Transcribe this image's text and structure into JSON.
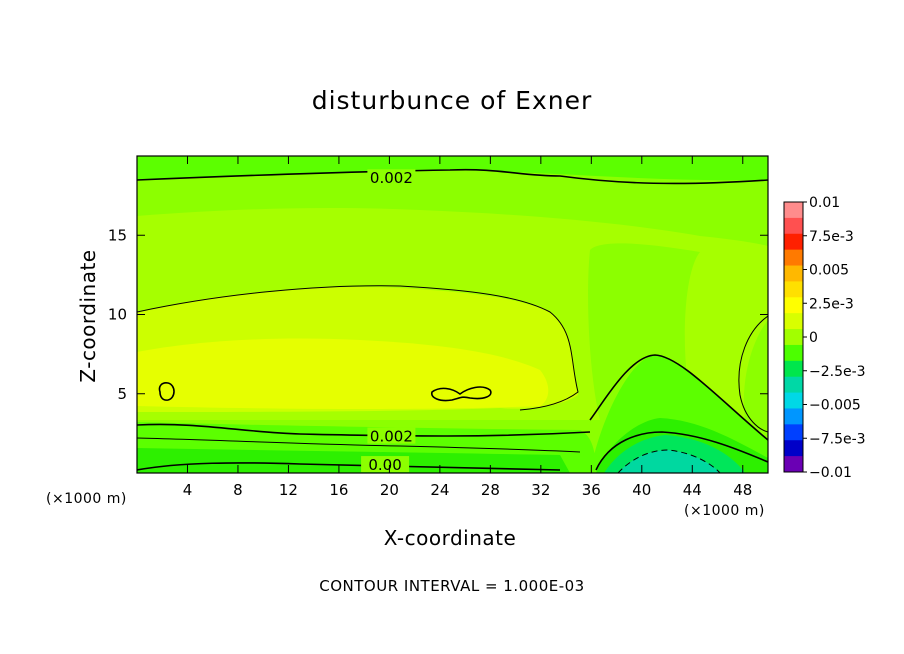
{
  "chart_data": {
    "type": "contour",
    "title": "disturbunce of Exner",
    "xlabel": "X-coordinate",
    "ylabel": "Z-coordinate",
    "x_unit": "(×1000 m)",
    "y_unit": "(×1000 m)",
    "xlim": [
      0,
      50
    ],
    "ylim": [
      0,
      20
    ],
    "x_ticks": [
      4,
      8,
      12,
      16,
      20,
      24,
      28,
      32,
      36,
      40,
      44,
      48
    ],
    "y_ticks": [
      5,
      10,
      15
    ],
    "contour_interval_text": "CONTOUR INTERVAL = 1.000E-03",
    "contour_labels": [
      {
        "x": 20,
        "y": 18.6,
        "text": "0.002"
      },
      {
        "x": 20,
        "y": 2.3,
        "text": "0.002"
      },
      {
        "x": 19.5,
        "y": 0.5,
        "text": "0.00"
      }
    ],
    "colorbar": {
      "labels": [
        "0.01",
        "7.5e-3",
        "0.005",
        "2.5e-3",
        "0",
        "−2.5e-3",
        "−0.005",
        "−7.5e-3",
        "−0.01"
      ],
      "colors": [
        "#ff8c8c",
        "#ff5050",
        "#ff2000",
        "#ff7a00",
        "#ffb800",
        "#ffe000",
        "#ffff00",
        "#d8ff00",
        "#a2ff00",
        "#4cff00",
        "#00e64c",
        "#00d8a6",
        "#00d8e6",
        "#0096ff",
        "#0040ff",
        "#0000c8",
        "#6a00b4"
      ]
    },
    "field_colors": {
      "band_3e3": "#e6ff00",
      "band_2_5e3": "#ccff00",
      "band_2e3": "#a6ff00",
      "band_1_5e3": "#8cff00",
      "band_1e3": "#5cff00",
      "band_0_5e3": "#2df000",
      "band_0": "#00e65a",
      "band_neg": "#00d8a0"
    }
  }
}
